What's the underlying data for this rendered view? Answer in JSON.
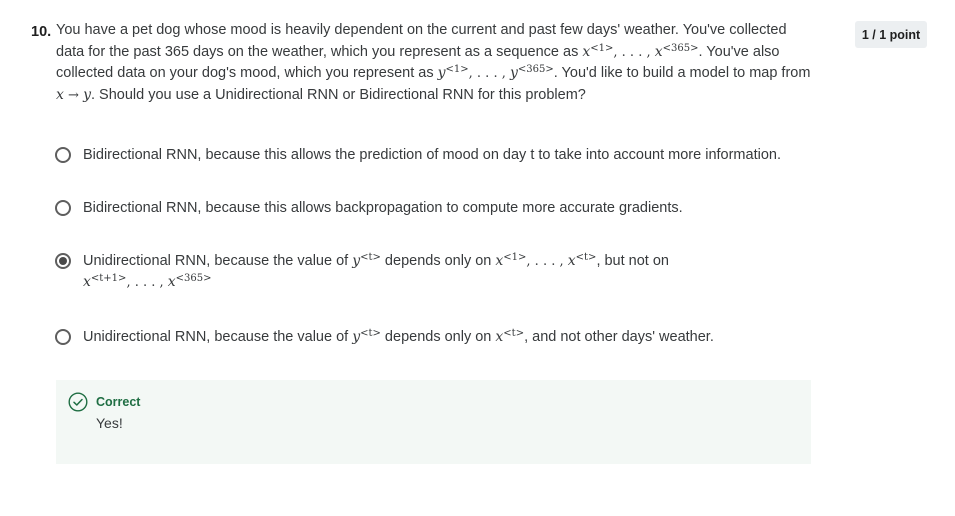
{
  "question": {
    "number": "10.",
    "points": "1 / 1 point",
    "text_1": "You have a pet dog whose mood is heavily dependent on the current and past few days' weather. You've collected data for the past 365 days on the weather, which you represent as a sequence as ",
    "x": "x",
    "sup_1": "<1>",
    "dots": ", . . . , ",
    "sup_365": "<365>",
    "text_2": ". You've also collected data on your dog's mood, which you represent as ",
    "y": "y",
    "text_3": ". You'd like to build a model to map from ",
    "arrow": " → ",
    "text_4": ". Should you use a Unidirectional RNN or Bidirectional RNN for this problem?"
  },
  "options": [
    {
      "label": "Bidirectional RNN, because this allows the prediction of mood on day t to take into account more information.",
      "selected": false
    },
    {
      "label": "Bidirectional RNN, because this allows backpropagation to compute more accurate gradients.",
      "selected": false
    },
    {
      "label_a": "Unidirectional RNN, because the value of ",
      "sup_t": "<t>",
      "label_b": " depends only on ",
      "label_c": ", but not on",
      "sup_t1": "<t+1>",
      "selected": true
    },
    {
      "label_a": "Unidirectional RNN, because the value of ",
      "label_b": " depends only on ",
      "label_c": ", and not other days' weather.",
      "selected": false
    }
  ],
  "feedback": {
    "title": "Correct",
    "message": "Yes!",
    "color": "#1f6e43"
  }
}
